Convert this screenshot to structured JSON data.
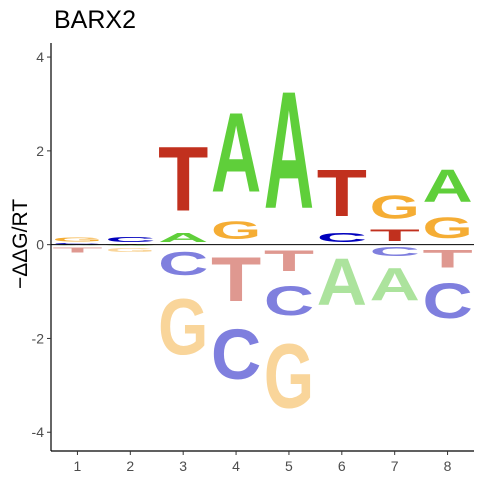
{
  "chart_data": {
    "type": "sequence-logo",
    "title": "BARX2",
    "xlabel": "",
    "ylabel": "−ΔΔG/RT",
    "xlim": [
      0.5,
      8.5
    ],
    "ylim": [
      -4.4,
      4.3
    ],
    "x_ticks": [
      "1",
      "2",
      "3",
      "4",
      "5",
      "6",
      "7",
      "8"
    ],
    "y_ticks": [
      -4,
      -2,
      0,
      2,
      4
    ],
    "y_tick_labels": [
      "-4",
      "-2",
      "0",
      "2",
      "4"
    ],
    "zero_line": true,
    "grid": false,
    "colors": {
      "A": "#5fcf3a",
      "C": "#0000bd",
      "G": "#f5ad34",
      "T": "#c1301e",
      "A_neg": "#ace39d",
      "C_neg": "#7f7fde",
      "G_neg": "#f9d59a",
      "T_neg": "#df9890"
    },
    "positions": [
      {
        "position": 1,
        "above": [
          {
            "base": "C",
            "height": 0.04
          },
          {
            "base": "G",
            "height": 0.13
          }
        ],
        "below": [
          {
            "base": "A",
            "height": 0.03
          },
          {
            "base": "T",
            "height": 0.17
          }
        ]
      },
      {
        "position": 2,
        "above": [
          {
            "base": "T",
            "height": 0.02
          },
          {
            "base": "C",
            "height": 0.17
          }
        ],
        "below": [
          {
            "base": "A",
            "height": 0.04
          },
          {
            "base": "G",
            "height": 0.14
          }
        ]
      },
      {
        "position": 3,
        "above": [
          {
            "base": "A",
            "height": 0.3
          },
          {
            "base": "T",
            "height": 2.2
          }
        ],
        "below": [
          {
            "base": "C",
            "height": 0.8
          },
          {
            "base": "G",
            "height": 1.9
          }
        ]
      },
      {
        "position": 4,
        "above": [
          {
            "base": "G",
            "height": 0.6
          },
          {
            "base": "A",
            "height": 2.7
          }
        ],
        "below": [
          {
            "base": "T",
            "height": 1.5
          },
          {
            "base": "C",
            "height": 1.7
          }
        ]
      },
      {
        "position": 5,
        "above": [
          {
            "base": "A",
            "height": 4.0
          }
        ],
        "below": [
          {
            "base": "T",
            "height": 0.7
          },
          {
            "base": "C",
            "height": 1.0
          },
          {
            "base": "G",
            "height": 2.2
          }
        ]
      },
      {
        "position": 6,
        "above": [
          {
            "base": "C",
            "height": 0.3
          },
          {
            "base": "T",
            "height": 1.6
          }
        ],
        "below": [
          {
            "base": "A",
            "height": 1.6
          }
        ]
      },
      {
        "position": 7,
        "above": [
          {
            "base": "T",
            "height": 0.4
          },
          {
            "base": "G",
            "height": 0.8
          }
        ],
        "below": [
          {
            "base": "C",
            "height": 0.3
          },
          {
            "base": "A",
            "height": 1.1
          }
        ]
      },
      {
        "position": 8,
        "above": [
          {
            "base": "G",
            "height": 0.7
          },
          {
            "base": "A",
            "height": 1.1
          }
        ],
        "below": [
          {
            "base": "T",
            "height": 0.6
          },
          {
            "base": "C",
            "height": 1.2
          }
        ]
      }
    ]
  }
}
